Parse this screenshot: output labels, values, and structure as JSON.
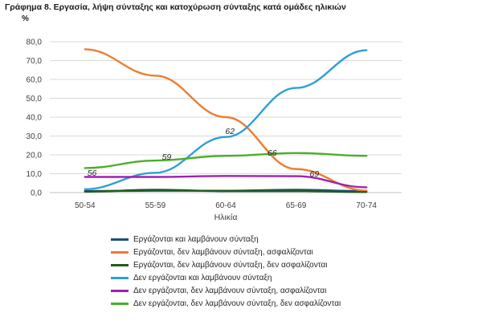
{
  "header": {
    "title": "Γράφημα  8. Εργασία, λήψη σύνταξης και κατοχύρωση σύνταξης κατά ομάδες ηλικιών",
    "unit": "%"
  },
  "chart_data": {
    "type": "line",
    "title": "Γράφημα  8. Εργασία, λήψη σύνταξης και κατοχύρωση σύνταξης κατά ομάδες ηλικιών",
    "ylabel": "%",
    "xlabel": "Ηλικία",
    "categories": [
      "50-54",
      "55-59",
      "60-64",
      "65-69",
      "70-74"
    ],
    "ylim": [
      0,
      80
    ],
    "yticks": [
      "0,0",
      "10,0",
      "20,0",
      "30,0",
      "40,0",
      "50,0",
      "60,0",
      "70,0",
      "80,0"
    ],
    "grid": true,
    "legend_position": "bottom",
    "series": [
      {
        "name": "Εργάζονται και λαμβάνουν σύνταξη",
        "color": "#1f4e79",
        "values": [
          0.8,
          1.0,
          1.0,
          1.5,
          0.8
        ]
      },
      {
        "name": "Εργάζονται, δεν λαμβάνουν σύνταξη, ασφαλίζονται",
        "color": "#ed7d31",
        "values": [
          76.0,
          62.0,
          40.0,
          12.5,
          1.0
        ]
      },
      {
        "name": "Εργάζονται, δεν λαμβάνουν σύνταξη, δεν ασφαλίζονται",
        "color": "#1e5c1e",
        "values": [
          0.5,
          1.5,
          0.8,
          0.8,
          0.3
        ]
      },
      {
        "name": "Δεν εργάζονται και λαμβάνουν σύνταξη",
        "color": "#2e9fd8",
        "values": [
          1.8,
          10.5,
          29.5,
          55.5,
          75.5
        ]
      },
      {
        "name": "Δεν εργάζονται, δεν λαμβάνουν σύνταξη, ασφαλίζονται",
        "color": "#a020b0",
        "values": [
          8.3,
          8.3,
          8.8,
          8.7,
          2.8
        ]
      },
      {
        "name": "Δεν εργάζονται, δεν λαμβάνουν σύνταξη, δεν ασφαλίζονται",
        "color": "#4caf27",
        "values": [
          13.0,
          17.0,
          19.5,
          21.0,
          19.5
        ]
      }
    ],
    "annotations": [
      {
        "text": "56",
        "x": "52.5",
        "y": 9.0
      },
      {
        "text": "59",
        "x": "57.8",
        "y": 17.5
      },
      {
        "text": "62",
        "x": "62.3",
        "y": 31.0
      },
      {
        "text": "66",
        "x": "65.3",
        "y": 19.5
      },
      {
        "text": "69",
        "x": "68.3",
        "y": 8.5
      }
    ]
  }
}
